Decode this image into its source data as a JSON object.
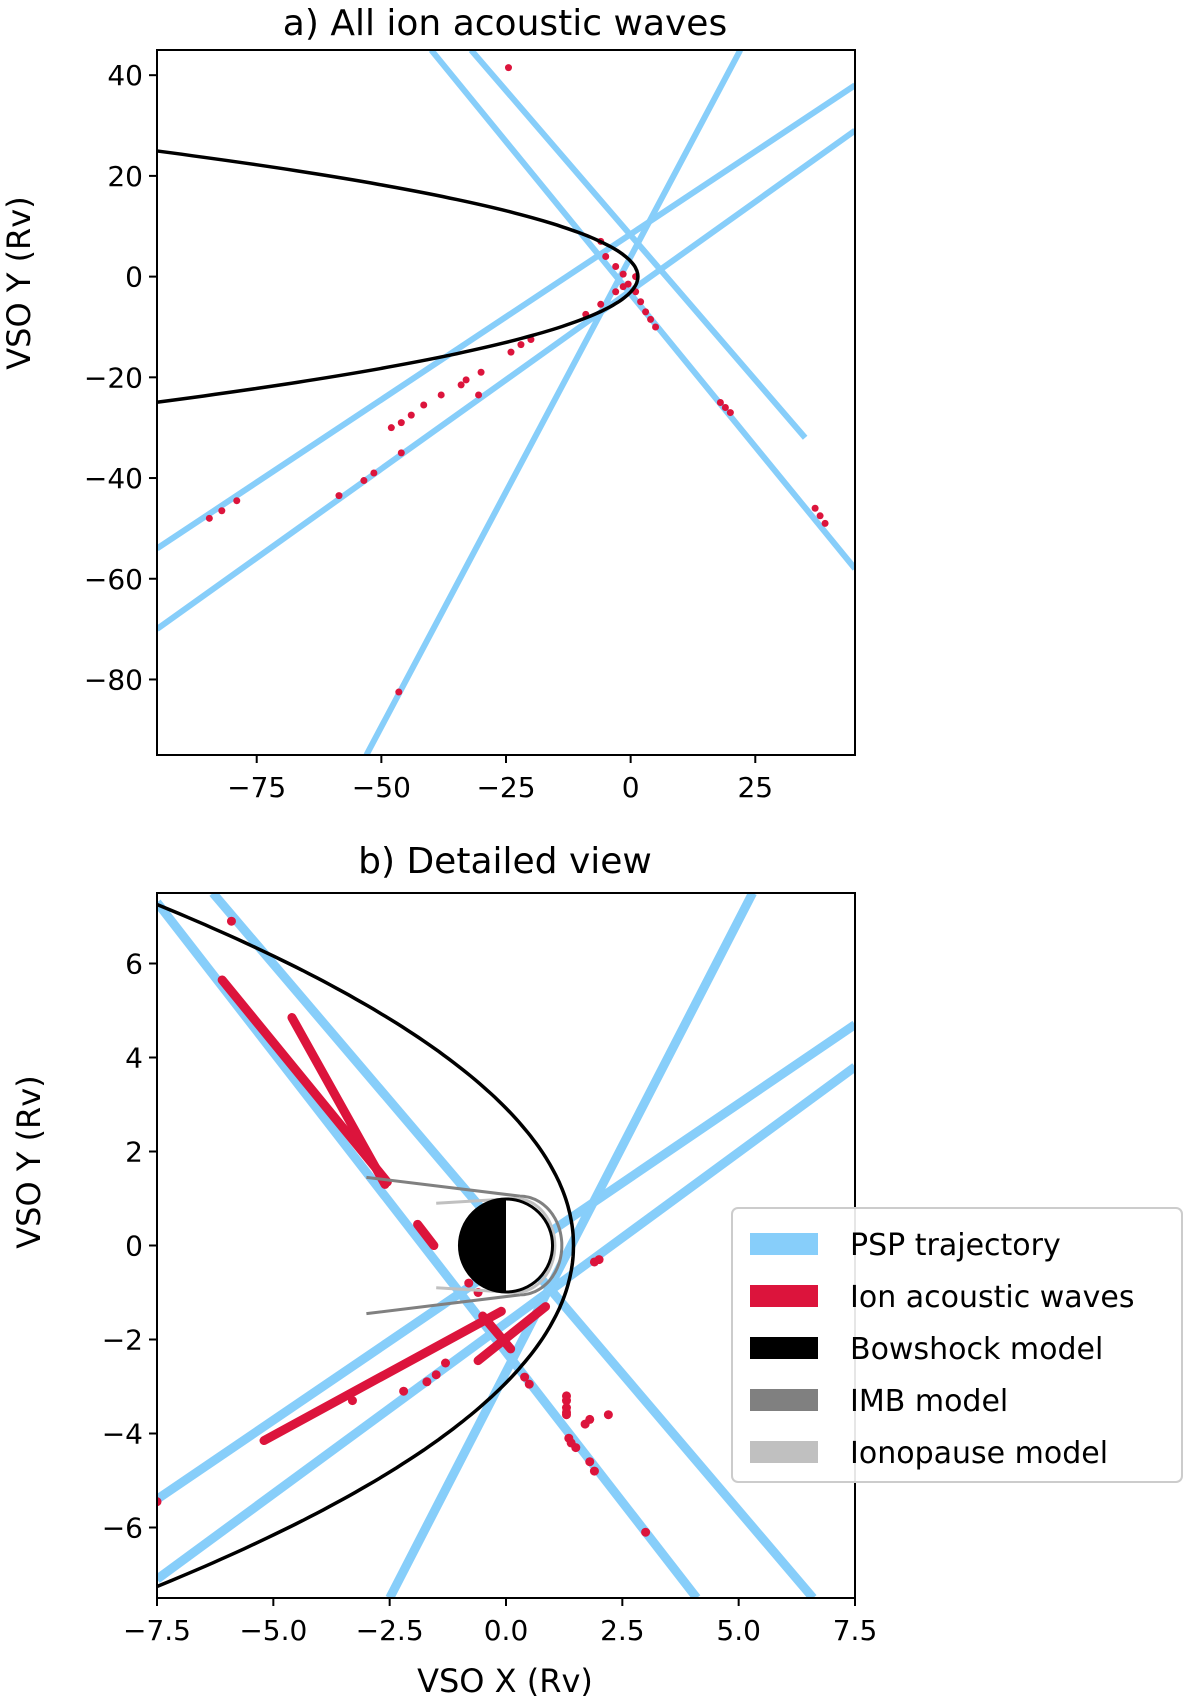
{
  "chart_data": [
    {
      "type": "line",
      "title": "a) All ion acoustic waves",
      "xlabel": "",
      "ylabel": "VSO Y (Rv)",
      "xlim": [
        -95,
        45
      ],
      "ylim": [
        -95,
        45
      ],
      "xticks": [
        -75,
        -50,
        -25,
        0,
        25
      ],
      "xtick_labels": [
        "−75",
        "−50",
        "−25",
        "0",
        "25"
      ],
      "yticks": [
        40,
        20,
        0,
        -20,
        -40,
        -60,
        -80
      ],
      "ytick_labels": [
        "40",
        "20",
        "0",
        "−20",
        "−40",
        "−60",
        "−80"
      ],
      "series": [
        {
          "name": "PSP trajectory",
          "color": "#87cefa",
          "lines": [
            [
              [
                -40,
                45
              ],
              [
                45,
                -58
              ]
            ],
            [
              [
                -32,
                45
              ],
              [
                35,
                -32
              ]
            ],
            [
              [
                -95,
                -54
              ],
              [
                45,
                38
              ]
            ],
            [
              [
                -95,
                -70
              ],
              [
                45,
                29
              ]
            ],
            [
              [
                -53,
                -95
              ],
              [
                22,
                45
              ]
            ]
          ]
        },
        {
          "name": "Ion acoustic waves",
          "color": "#dc143c",
          "points": [
            [
              -24.5,
              41.5
            ],
            [
              -6,
              7
            ],
            [
              -5,
              4
            ],
            [
              -3,
              2
            ],
            [
              -1.5,
              0.5
            ],
            [
              1,
              0
            ],
            [
              -0.5,
              -1.5
            ],
            [
              -1.5,
              -2
            ],
            [
              -3,
              -3
            ],
            [
              1,
              -3
            ],
            [
              2,
              -5
            ],
            [
              3,
              -7
            ],
            [
              4,
              -8.5
            ],
            [
              5,
              -10
            ],
            [
              -6,
              -5.5
            ],
            [
              -9,
              -7.5
            ],
            [
              -20,
              -12.5
            ],
            [
              -22,
              -13.5
            ],
            [
              -24,
              -15
            ],
            [
              -30,
              -19
            ],
            [
              -33,
              -20.5
            ],
            [
              -34,
              -21.5
            ],
            [
              -38,
              -23.5
            ],
            [
              -41.5,
              -25.5
            ],
            [
              -44,
              -27.5
            ],
            [
              -46,
              -29
            ],
            [
              -48,
              -30
            ],
            [
              -84.5,
              -48
            ],
            [
              -82,
              -46.5
            ],
            [
              -79,
              -44.5
            ],
            [
              -46,
              -35
            ],
            [
              -51.5,
              -39
            ],
            [
              -53.5,
              -40.5
            ],
            [
              -58.5,
              -43.5
            ],
            [
              -30.5,
              -23.5
            ],
            [
              18,
              -25
            ],
            [
              19,
              -26
            ],
            [
              20,
              -27
            ],
            [
              37,
              -46
            ],
            [
              38,
              -47.5
            ],
            [
              39,
              -49
            ],
            [
              -46.5,
              -82.5
            ]
          ]
        },
        {
          "name": "Bowshock model",
          "color": "#000000",
          "curve": "bowshock"
        }
      ]
    },
    {
      "type": "line",
      "title": "b) Detailed view",
      "xlabel": "VSO X (Rv)",
      "ylabel": "VSO Y (Rv)",
      "xlim": [
        -7.5,
        7.5
      ],
      "ylim": [
        -7.5,
        7.5
      ],
      "xticks": [
        -7.5,
        -5,
        -2.5,
        0,
        2.5,
        5,
        7.5
      ],
      "xtick_labels": [
        "−7.5",
        "−5.0",
        "−2.5",
        "0.0",
        "2.5",
        "5.0",
        "7.5"
      ],
      "yticks": [
        6,
        4,
        2,
        0,
        -2,
        -4,
        -6
      ],
      "ytick_labels": [
        "6",
        "4",
        "2",
        "0",
        "−2",
        "−4",
        "−6"
      ],
      "legend": {
        "location": "lower-right",
        "entries": [
          {
            "label": "PSP trajectory",
            "color": "#87cefa"
          },
          {
            "label": "Ion acoustic waves",
            "color": "#dc143c"
          },
          {
            "label": "Bowshock model",
            "color": "#000000"
          },
          {
            "label": "IMB model",
            "color": "#808080"
          },
          {
            "label": "Ionopause model",
            "color": "#c0c0c0"
          }
        ]
      },
      "series": [
        {
          "name": "PSP trajectory",
          "color": "#87cefa",
          "lines": [
            [
              [
                -6.3,
                7.5
              ],
              [
                6.6,
                -7.5
              ]
            ],
            [
              [
                -7.5,
                7.3
              ],
              [
                4.1,
                -7.5
              ]
            ],
            [
              [
                -7.5,
                -5.4
              ],
              [
                7.5,
                4.7
              ]
            ],
            [
              [
                -7.5,
                -7.1
              ],
              [
                7.5,
                3.8
              ]
            ],
            [
              [
                -2.5,
                -7.5
              ],
              [
                5.3,
                7.5
              ]
            ]
          ]
        },
        {
          "name": "Ion acoustic waves",
          "color": "#dc143c",
          "segments": [
            [
              [
                -6.1,
                5.65
              ],
              [
                -2.55,
                1.35
              ]
            ],
            [
              [
                -4.6,
                4.85
              ],
              [
                -2.6,
                1.3
              ]
            ],
            [
              [
                -5.2,
                -4.15
              ],
              [
                -0.1,
                -1.4
              ]
            ],
            [
              [
                -0.6,
                -2.45
              ],
              [
                0.85,
                -1.3
              ]
            ],
            [
              [
                -0.5,
                -1.5
              ],
              [
                0.1,
                -2.2
              ]
            ],
            [
              [
                -1.9,
                0.45
              ],
              [
                -1.55,
                0.0
              ]
            ]
          ],
          "points": [
            [
              -5.9,
              6.9
            ],
            [
              -7.5,
              -5.45
            ],
            [
              -3.3,
              -3.3
            ],
            [
              -2.2,
              -3.1
            ],
            [
              -1.7,
              -2.9
            ],
            [
              -1.5,
              -2.75
            ],
            [
              -1.3,
              -2.5
            ],
            [
              -0.6,
              -1.0
            ],
            [
              -0.8,
              -0.8
            ],
            [
              0.4,
              -2.8
            ],
            [
              0.5,
              -2.95
            ],
            [
              2.0,
              -0.3
            ],
            [
              1.9,
              -0.35
            ],
            [
              2.2,
              -3.6
            ],
            [
              1.3,
              -3.3
            ],
            [
              1.3,
              -3.2
            ],
            [
              1.3,
              -3.45
            ],
            [
              1.3,
              -3.55
            ],
            [
              1.3,
              -3.6
            ],
            [
              1.8,
              -3.7
            ],
            [
              1.7,
              -3.8
            ],
            [
              1.35,
              -4.1
            ],
            [
              1.8,
              -4.6
            ],
            [
              1.9,
              -4.8
            ],
            [
              3.0,
              -6.1
            ],
            [
              1.4,
              -4.2
            ],
            [
              1.5,
              -4.3
            ]
          ]
        },
        {
          "name": "Bowshock model",
          "color": "#000000",
          "curve": "bowshock"
        },
        {
          "name": "IMB model",
          "color": "#808080",
          "curve": "imb"
        },
        {
          "name": "Ionopause model",
          "color": "#c0c0c0",
          "curve": "ionopause"
        },
        {
          "name": "Venus",
          "color": "#000000",
          "circle": {
            "cx": 0,
            "cy": 0,
            "r": 1
          }
        }
      ]
    }
  ]
}
